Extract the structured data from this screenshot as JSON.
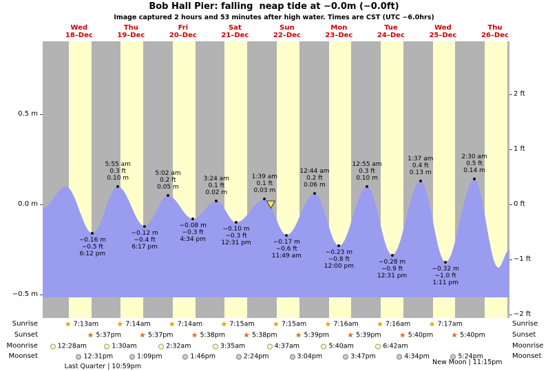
{
  "title": "Bob Hall Pier: falling  neap tide at −0.0m (−0.0ft)",
  "subtitle": "Image captured 2 hours and 53 minutes after high water. Times are CST (UTC −6.0hrs)",
  "days": [
    {
      "name": "Wed",
      "date": "18–Dec"
    },
    {
      "name": "Thu",
      "date": "19–Dec"
    },
    {
      "name": "Fri",
      "date": "20–Dec"
    },
    {
      "name": "Sat",
      "date": "21–Dec"
    },
    {
      "name": "Sun",
      "date": "22–Dec"
    },
    {
      "name": "Mon",
      "date": "23–Dec"
    },
    {
      "name": "Tue",
      "date": "24–Dec"
    },
    {
      "name": "Wed",
      "date": "25–Dec"
    },
    {
      "name": "Thu",
      "date": "26–Dec"
    }
  ],
  "axis": {
    "left_ticks": [
      {
        "label": "0.5 m",
        "m": 0.5
      },
      {
        "label": "0.0 m",
        "m": 0.0
      },
      {
        "label": "−0.5 m",
        "m": -0.5
      }
    ],
    "right_ticks": [
      {
        "label": "2 ft",
        "m": 0.6096
      },
      {
        "label": "1 ft",
        "m": 0.3048
      },
      {
        "label": "0 ft",
        "m": 0.0
      },
      {
        "label": "−1 ft",
        "m": -0.3048
      },
      {
        "label": "−2 ft",
        "m": -0.6096
      }
    ]
  },
  "chart_data": {
    "type": "area",
    "title": "Bob Hall Pier tide height",
    "x_unit": "hours from Wed 18-Dec 00:00 CST",
    "y_unit_left": "m",
    "y_unit_right": "ft",
    "ylim_m": [
      -0.63,
      0.9
    ],
    "extremes": [
      {
        "t": -4.8,
        "m": -0.02
      },
      {
        "t": 5.9,
        "m": 0.1
      },
      {
        "t": 18.2,
        "m": -0.16,
        "lines": [
          "−0.16 m",
          "−0.5 ft",
          "6:12 pm"
        ]
      },
      {
        "t": 29.92,
        "m": 0.1,
        "lines": [
          "5:55 am",
          "0.3 ft",
          "0.10 m"
        ]
      },
      {
        "t": 42.28,
        "m": -0.12,
        "lines": [
          "−0.12 m",
          "−0.4 ft",
          "6:17 pm"
        ]
      },
      {
        "t": 53.03,
        "m": 0.05,
        "lines": [
          "5:02 am",
          "0.2 ft",
          "0.05 m"
        ]
      },
      {
        "t": 64.57,
        "m": -0.08,
        "lines": [
          "−0.08 m",
          "−0.3 ft",
          "4:34 pm"
        ]
      },
      {
        "t": 75.4,
        "m": 0.02,
        "lines": [
          "3:24 am",
          "0.1 ft",
          "0.02 m"
        ]
      },
      {
        "t": 84.52,
        "m": -0.1,
        "lines": [
          "−0.10 m",
          "−0.3 ft",
          "12:31 pm"
        ]
      },
      {
        "t": 97.65,
        "m": 0.03,
        "lines": [
          "1:39 am",
          "0.1 ft",
          "0.03 m"
        ]
      },
      {
        "t": 107.82,
        "m": -0.17,
        "lines": [
          "−0.17 m",
          "−0.6 ft",
          "11:49 am"
        ]
      },
      {
        "t": 120.73,
        "m": 0.06,
        "lines": [
          "12:44 am",
          "0.2 ft",
          "0.06 m"
        ]
      },
      {
        "t": 132.0,
        "m": -0.23,
        "lines": [
          "−0.23 m",
          "−0.8 ft",
          "12:00 pm"
        ]
      },
      {
        "t": 144.92,
        "m": 0.1,
        "lines": [
          "12:55 am",
          "0.3 ft",
          "0.10 m"
        ]
      },
      {
        "t": 156.52,
        "m": -0.28,
        "lines": [
          "−0.28 m",
          "−0.9 ft",
          "12:31 pm"
        ]
      },
      {
        "t": 169.62,
        "m": 0.13,
        "lines": [
          "1:37 am",
          "0.4 ft",
          "0.13 m"
        ]
      },
      {
        "t": 181.18,
        "m": -0.32,
        "lines": [
          "−0.32 m",
          "−1.0 ft",
          "1:11 pm"
        ]
      },
      {
        "t": 194.5,
        "m": 0.14,
        "lines": [
          "2:30 am",
          "0.5 ft",
          "0.14 m"
        ]
      },
      {
        "t": 205.5,
        "m": -0.35
      },
      {
        "t": 210.7,
        "m": -0.25
      }
    ],
    "now_marker": {
      "t": 100.53,
      "m": 0.0
    },
    "daylight": [
      {
        "rise": 7.217,
        "set": 17.617
      },
      {
        "rise": 7.233,
        "set": 17.617
      },
      {
        "rise": 7.233,
        "set": 17.633
      },
      {
        "rise": 7.25,
        "set": 17.633
      },
      {
        "rise": 7.25,
        "set": 17.65
      },
      {
        "rise": 7.267,
        "set": 17.65
      },
      {
        "rise": 7.267,
        "set": 17.667
      },
      {
        "rise": 7.283,
        "set": 17.667
      },
      {
        "rise": 7.283,
        "set": 17.683
      }
    ]
  },
  "sun_moon": {
    "rows": [
      {
        "label": "Sunrise",
        "type": "star",
        "glyph": "★",
        "color": "#d9a400",
        "events": [
          {
            "time": "7:13am",
            "t": 7.217
          },
          {
            "time": "7:14am",
            "t": 31.233
          },
          {
            "time": "7:14am",
            "t": 55.233
          },
          {
            "time": "7:15am",
            "t": 79.25
          },
          {
            "time": "7:15am",
            "t": 103.25
          },
          {
            "time": "7:16am",
            "t": 127.267
          },
          {
            "time": "7:16am",
            "t": 151.267
          },
          {
            "time": "7:17am",
            "t": 175.283
          }
        ]
      },
      {
        "label": "Sunset",
        "type": "star",
        "glyph": "★",
        "color": "#f96400",
        "events": [
          {
            "time": "5:37pm",
            "t": 17.617
          },
          {
            "time": "5:37pm",
            "t": 41.617
          },
          {
            "time": "5:38pm",
            "t": 65.633
          },
          {
            "time": "5:38pm",
            "t": 89.633
          },
          {
            "time": "5:39pm",
            "t": 113.65
          },
          {
            "time": "5:39pm",
            "t": 137.65
          },
          {
            "time": "5:40pm",
            "t": 161.667
          },
          {
            "time": "5:40pm",
            "t": 185.667
          }
        ]
      },
      {
        "label": "Moonrise",
        "type": "circle",
        "fill": "#ffffd0",
        "border": "#99994d",
        "events": [
          {
            "time": "12:28am",
            "t": 0.467
          },
          {
            "time": "1:30am",
            "t": 25.5
          },
          {
            "time": "2:32am",
            "t": 50.533
          },
          {
            "time": "3:35am",
            "t": 75.583
          },
          {
            "time": "4:37am",
            "t": 100.617
          },
          {
            "time": "5:40am",
            "t": 125.667
          },
          {
            "time": "6:42am",
            "t": 150.7
          }
        ]
      },
      {
        "label": "Moonset",
        "type": "circle",
        "fill": "#cbcbcb",
        "border": "#7f7f7f",
        "events": [
          {
            "time": "12:31pm",
            "t": 12.517
          },
          {
            "time": "1:09pm",
            "t": 37.15
          },
          {
            "time": "1:46pm",
            "t": 61.767
          },
          {
            "time": "2:24pm",
            "t": 86.4
          },
          {
            "time": "3:04pm",
            "t": 111.067
          },
          {
            "time": "3:47pm",
            "t": 135.783
          },
          {
            "time": "4:34pm",
            "t": 160.567
          },
          {
            "time": "5:24pm",
            "t": 185.4
          }
        ]
      }
    ],
    "phases": [
      {
        "label": "Last Quarter | 10:59pm",
        "t": 22.98
      },
      {
        "label": "New Moon | 11:15pm",
        "t": 191.25
      }
    ]
  },
  "colors": {
    "day_label": "#cc0000",
    "plot_bg": "#b3b3b3",
    "daylight_band": "#ffffcc",
    "tide_fill": "#9a9cf0",
    "now_marker_fill": "#ffe34d",
    "now_marker_stroke": "#333333",
    "dot": "#111111"
  }
}
